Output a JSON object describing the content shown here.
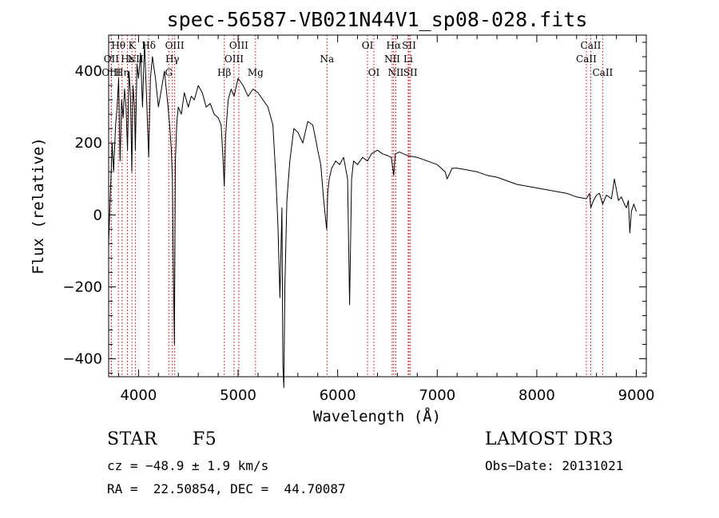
{
  "chart_data": {
    "type": "line",
    "title": "spec-56587-VB021N44V1_sp08-028.fits",
    "xlabel": "Wavelength (Å)",
    "ylabel": "Flux (relative)",
    "xlim": [
      3700,
      9100
    ],
    "ylim": [
      -450,
      500
    ],
    "x_ticks": [
      4000,
      5000,
      6000,
      7000,
      8000,
      9000
    ],
    "y_ticks": [
      -400,
      -200,
      0,
      200,
      400
    ],
    "grid": false,
    "series": [
      {
        "name": "spectrum",
        "x": [
          3700,
          3720,
          3735,
          3750,
          3770,
          3785,
          3800,
          3815,
          3830,
          3845,
          3860,
          3875,
          3889,
          3905,
          3920,
          3933,
          3945,
          3960,
          3968,
          3985,
          4000,
          4020,
          4040,
          4060,
          4080,
          4102,
          4120,
          4140,
          4170,
          4200,
          4230,
          4260,
          4290,
          4310,
          4330,
          4340,
          4350,
          4360,
          4370,
          4385,
          4400,
          4430,
          4460,
          4500,
          4530,
          4560,
          4600,
          4640,
          4680,
          4720,
          4760,
          4800,
          4830,
          4850,
          4861,
          4875,
          4900,
          4930,
          4960,
          5000,
          5050,
          5100,
          5150,
          5200,
          5250,
          5300,
          5350,
          5380,
          5400,
          5420,
          5440,
          5450,
          5460,
          5470,
          5490,
          5520,
          5560,
          5600,
          5650,
          5700,
          5750,
          5780,
          5800,
          5830,
          5860,
          5890,
          5900,
          5915,
          5940,
          5980,
          6020,
          6060,
          6100,
          6120,
          6140,
          6160,
          6200,
          6250,
          6300,
          6340,
          6400,
          6450,
          6500,
          6540,
          6563,
          6580,
          6620,
          6700,
          6800,
          6900,
          7000,
          7080,
          7100,
          7150,
          7200,
          7300,
          7400,
          7500,
          7600,
          7700,
          7800,
          7900,
          8000,
          8100,
          8200,
          8300,
          8400,
          8498,
          8530,
          8542,
          8570,
          8600,
          8630,
          8662,
          8700,
          8750,
          8780,
          8820,
          8850,
          8880,
          8900,
          8920,
          8935,
          8950,
          8975,
          9000
        ],
        "values": [
          -80,
          80,
          200,
          120,
          250,
          300,
          380,
          150,
          320,
          270,
          350,
          300,
          180,
          400,
          330,
          120,
          360,
          300,
          180,
          420,
          380,
          450,
          300,
          480,
          330,
          160,
          380,
          440,
          380,
          300,
          350,
          400,
          320,
          260,
          180,
          100,
          -150,
          -360,
          150,
          260,
          300,
          280,
          340,
          300,
          330,
          320,
          360,
          340,
          300,
          310,
          280,
          270,
          250,
          150,
          80,
          220,
          320,
          350,
          330,
          380,
          360,
          330,
          350,
          340,
          320,
          300,
          250,
          100,
          -30,
          -230,
          20,
          -420,
          -480,
          -200,
          40,
          150,
          240,
          230,
          200,
          260,
          250,
          210,
          180,
          140,
          40,
          -40,
          60,
          100,
          130,
          150,
          140,
          160,
          100,
          -250,
          100,
          150,
          140,
          160,
          150,
          170,
          180,
          170,
          165,
          160,
          110,
          170,
          175,
          165,
          160,
          150,
          140,
          120,
          100,
          130,
          130,
          125,
          120,
          110,
          105,
          95,
          85,
          80,
          75,
          70,
          65,
          60,
          50,
          45,
          60,
          20,
          40,
          55,
          60,
          30,
          55,
          45,
          100,
          40,
          50,
          30,
          20,
          40,
          -50,
          10,
          30,
          10
        ]
      }
    ],
    "line_markers": [
      {
        "label": "Hθ",
        "x": 3798,
        "row": 1
      },
      {
        "label": "OII",
        "x": 3727,
        "row": 2
      },
      {
        "label": "OIII",
        "x": 3727,
        "row": 3
      },
      {
        "label": "K",
        "x": 3934,
        "row": 1
      },
      {
        "label": "Hε",
        "x": 3889,
        "row": 2
      },
      {
        "label": "Hη",
        "x": 3835,
        "row": 3
      },
      {
        "label": "Hδ",
        "x": 4102,
        "row": 1
      },
      {
        "label": "NII",
        "x": 3970,
        "row": 2
      },
      {
        "label": "OIII",
        "x": 4363,
        "row": 1
      },
      {
        "label": "Hγ",
        "x": 4340,
        "row": 2
      },
      {
        "label": "G",
        "x": 4304,
        "row": 3
      },
      {
        "label": "OIII",
        "x": 5007,
        "row": 1
      },
      {
        "label": "OIII",
        "x": 4959,
        "row": 2
      },
      {
        "label": "Hβ",
        "x": 4861,
        "row": 3
      },
      {
        "label": "Mg",
        "x": 5175,
        "row": 3
      },
      {
        "label": "Na",
        "x": 5893,
        "row": 2
      },
      {
        "label": "OI",
        "x": 6300,
        "row": 1
      },
      {
        "label": "OI",
        "x": 6364,
        "row": 3
      },
      {
        "label": "Hα",
        "x": 6563,
        "row": 1
      },
      {
        "label": "NII",
        "x": 6548,
        "row": 2
      },
      {
        "label": "NII",
        "x": 6584,
        "row": 3
      },
      {
        "label": "SII",
        "x": 6717,
        "row": 1
      },
      {
        "label": "Li",
        "x": 6708,
        "row": 2
      },
      {
        "label": "SII",
        "x": 6731,
        "row": 3
      },
      {
        "label": "CaII",
        "x": 8542,
        "row": 1
      },
      {
        "label": "CaII",
        "x": 8498,
        "row": 2
      },
      {
        "label": "CaII",
        "x": 8662,
        "row": 3
      }
    ]
  },
  "info": {
    "object_class": "STAR",
    "subclass": "F5",
    "survey": "LAMOST DR3",
    "cz": "cz = −48.9 ± 1.9 km/s",
    "obs_date": "Obs−Date: 20131021",
    "coords": "RA =  22.50854, DEC =  44.70087"
  },
  "colors": {
    "axis": "#000000",
    "spectrum": "#000000",
    "markers": "#cc0000"
  }
}
